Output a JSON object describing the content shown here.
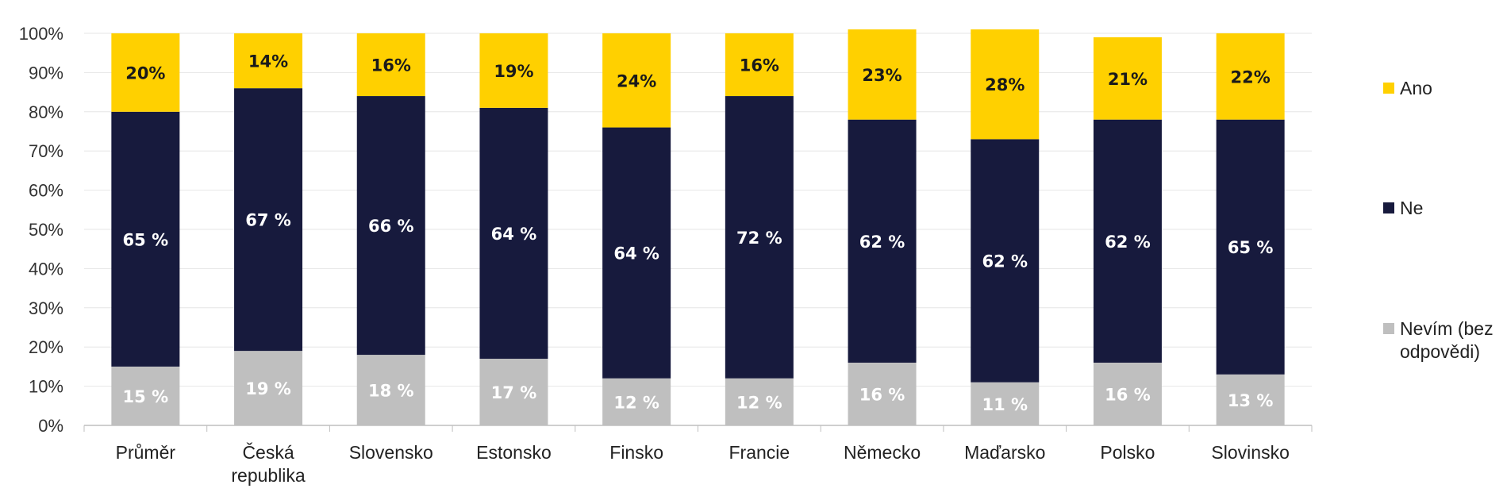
{
  "chart_data": {
    "type": "bar",
    "stacked": true,
    "categories": [
      [
        "Průměr"
      ],
      [
        "Česká",
        "republika"
      ],
      [
        "Slovensko"
      ],
      [
        "Estonsko"
      ],
      [
        "Finsko"
      ],
      [
        "Francie"
      ],
      [
        "Německo"
      ],
      [
        "Maďarsko"
      ],
      [
        "Polsko"
      ],
      [
        "Slovinsko"
      ]
    ],
    "series": [
      {
        "name": "Nevím (bez odpovědi)",
        "legend_lines": [
          "Nevím (bez",
          "odpovědi)"
        ],
        "color": "#bfbfbf",
        "label_color": "#ffffff",
        "values": [
          15,
          19,
          18,
          17,
          12,
          12,
          16,
          11,
          16,
          13
        ],
        "labels": [
          "15 %",
          "19 %",
          "18 %",
          "17 %",
          "12 %",
          "12 %",
          "16 %",
          "11 %",
          "16 %",
          "13 %"
        ]
      },
      {
        "name": "Ne",
        "legend_lines": [
          "Ne"
        ],
        "color": "#171a3d",
        "label_color": "#ffffff",
        "values": [
          65,
          67,
          66,
          64,
          64,
          72,
          62,
          62,
          62,
          65
        ],
        "labels": [
          "65 %",
          "67 %",
          "66 %",
          "64 %",
          "64 %",
          "72 %",
          "62 %",
          "62 %",
          "62 %",
          "65 %"
        ]
      },
      {
        "name": "Ano",
        "legend_lines": [
          "Ano"
        ],
        "color": "#ffd000",
        "label_color": "#1a1a1a",
        "values": [
          20,
          14,
          16,
          19,
          24,
          16,
          23,
          28,
          21,
          22
        ],
        "labels": [
          "20%",
          "14%",
          "16%",
          "19%",
          "24%",
          "16%",
          "23%",
          "28%",
          "21%",
          "22%"
        ]
      }
    ],
    "yticks": [
      "0%",
      "10%",
      "20%",
      "30%",
      "40%",
      "50%",
      "60%",
      "70%",
      "80%",
      "90%",
      "100%"
    ],
    "ylim": [
      0,
      100
    ],
    "grid": true,
    "legend_position": "right"
  }
}
